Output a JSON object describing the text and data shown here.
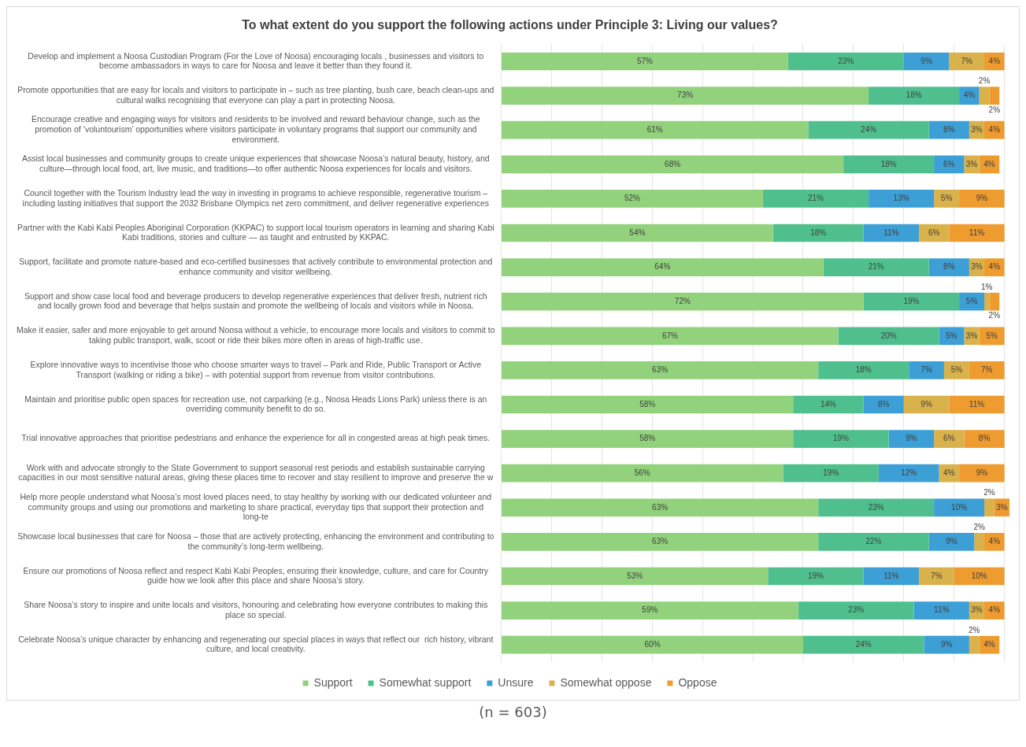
{
  "chart_data": {
    "type": "bar",
    "orientation": "horizontal",
    "stacked": true,
    "title": "To what extent do you support the following actions under Principle 3: Living our values?",
    "categories": [
      "Develop and implement a Noosa Custodian Program (For the Love of Noosa) encouraging locals , businesses and visitors to become ambassadors in ways to care for Noosa and leave it better than they found it.",
      "Promote opportunities that are easy for locals and visitors to participate in – such as tree planting, bush care, beach clean-ups and cultural walks recognising that everyone can play a part in protecting Noosa.",
      "Encourage creative and engaging ways for visitors and residents to be involved and reward behaviour change, such as the promotion of ‘voluntourism’ opportunities where visitors participate in voluntary programs that support our community and environment.",
      "Assist local businesses and community groups to create unique experiences that showcase Noosa’s natural beauty, history, and culture—through local food, art, live music, and traditions—to offer authentic Noosa experiences for locals and visitors.",
      "Council together with the Tourism Industry lead the way in investing in programs to achieve responsible, regenerative tourism – including lasting initiatives that support the 2032 Brisbane Olympics net zero commitment, and deliver regenerative experiences",
      "Partner with the Kabi Kabi Peoples Aboriginal Corporation (KKPAC) to support local tourism operators in learning and sharing Kabi Kabi traditions, stories and culture — as taught and entrusted by KKPAC.",
      "Support, facilitate and promote nature-based and eco-certified businesses that actively contribute to environmental protection and enhance community and visitor wellbeing.",
      "Support and show case local food and beverage producers to develop regenerative experiences that deliver fresh, nutrient rich and locally grown food and beverage that helps sustain and promote the wellbeing of locals and visitors while in Noosa.",
      "Make it easier, safer and more enjoyable to get around Noosa without a vehicle, to encourage more locals and visitors to commit to taking public transport, walk, scoot or ride their bikes more often in areas of high-traffic use.",
      "Explore innovative ways to incentivise those who choose smarter ways to travel – Park and Ride, Public Transport or Active Transport (walking or riding a bike) – with potential support from revenue from visitor contributions.",
      "Maintain and prioritise public open spaces for recreation use, not carparking (e.g., Noosa Heads Lions Park) unless there is an overriding community benefit to do so.",
      "Trial innovative approaches that prioritise pedestrians and enhance the experience for all in congested areas at high peak times.",
      "Work with and advocate strongly to the State Government to support seasonal rest periods and establish sustainable carrying capacities in our most sensitive natural areas, giving these places time to recover and stay resilient to improve and preserve the w",
      "Help more people understand what Noosa’s most loved places need, to stay healthy by working with our dedicated volunteer and community groups and using our promotions and marketing to share practical, everyday tips that support their protection and long-te",
      "Showcase local businesses that care for Noosa – those that are actively protecting, enhancing the environment and contributing to the community’s long-term wellbeing.",
      "Ensure our promotions of Noosa reflect and respect Kabi Kabi Peoples, ensuring their knowledge, culture, and care for Country guide how we look after this place and share Noosa’s story.",
      "Share Noosa’s story to inspire and unite locals and visitors, honouring and celebrating how everyone contributes to making this place so special.",
      "Celebrate Noosa’s unique character by enhancing and regenerating our special places in ways that reflect our  rich history, vibrant culture, and local creativity."
    ],
    "series": [
      {
        "name": "Support",
        "color": "#92d27c",
        "values": [
          57,
          73,
          61,
          68,
          52,
          54,
          64,
          72,
          67,
          63,
          58,
          58,
          56,
          63,
          63,
          53,
          59,
          60
        ],
        "value_labels": [
          "57%",
          "73%",
          "61%",
          "68%",
          "52%",
          "54%",
          "64%",
          "72%",
          "67%",
          "63%",
          "58%",
          "58%",
          "56%",
          "63%",
          "63%",
          "53%",
          "59%",
          "60%"
        ]
      },
      {
        "name": "Somewhat support",
        "color": "#4fc08d",
        "values": [
          23,
          18,
          24,
          18,
          21,
          18,
          21,
          19,
          20,
          18,
          14,
          19,
          19,
          23,
          22,
          19,
          23,
          24
        ],
        "value_labels": [
          "23%",
          "18%",
          "24%",
          "18%",
          "21%",
          "18%",
          "21%",
          "19%",
          "20%",
          "18%",
          "14%",
          "19%",
          "19%",
          "23%",
          "22%",
          "19%",
          "23%",
          "24%"
        ]
      },
      {
        "name": "Unsure",
        "color": "#3c9fd6",
        "values": [
          9,
          4,
          8,
          6,
          13,
          11,
          8,
          5,
          5,
          7,
          8,
          9,
          12,
          10,
          9,
          11,
          11,
          9
        ],
        "value_labels": [
          "9%",
          "4%",
          "8%",
          "6%",
          "13%",
          "11%",
          "8%",
          "5%",
          "5%",
          "7%",
          "8%",
          "9%",
          "12%",
          "10%",
          "9%",
          "11%",
          "11%",
          "9%"
        ]
      },
      {
        "name": "Somewhat oppose",
        "color": "#d9b24c",
        "values": [
          7,
          2,
          3,
          3,
          5,
          6,
          3,
          1,
          3,
          5,
          9,
          6,
          4,
          2,
          2,
          7,
          3,
          2
        ],
        "value_labels": [
          "7%",
          "2%",
          "3%",
          "3%",
          "5%",
          "6%",
          "3%",
          "1%",
          "3%",
          "5%",
          "9%",
          "6%",
          "4%",
          "2%",
          "2%",
          "7%",
          "3%",
          "2%"
        ]
      },
      {
        "name": "Oppose",
        "color": "#ee9b30",
        "values": [
          4,
          2,
          4,
          4,
          9,
          11,
          4,
          2,
          5,
          7,
          11,
          8,
          9,
          3,
          4,
          10,
          4,
          4
        ],
        "value_labels": [
          "4%",
          "2%",
          "4%",
          "4%",
          "9%",
          "11%",
          "4%",
          "2%",
          "5%",
          "7%",
          "11%",
          "8%",
          "9%",
          "3%",
          "4%",
          "10%",
          "4%",
          "4%"
        ]
      }
    ],
    "xlim": [
      0,
      101
    ],
    "xticks": [
      {
        "value": 0,
        "label": null
      },
      {
        "value": 10,
        "label": null
      },
      {
        "value": 20,
        "label": null
      },
      {
        "value": 30,
        "label": null
      },
      {
        "value": 40,
        "label": null
      },
      {
        "value": 50,
        "label": null
      },
      {
        "value": 60,
        "label": null
      },
      {
        "value": 70,
        "label": null
      },
      {
        "value": 80,
        "label": null
      },
      {
        "value": 90,
        "label": null
      },
      {
        "value": 100,
        "label": null
      }
    ],
    "grid": "x",
    "legend": "bottom",
    "tick_labels": "y",
    "annotations": [
      "(n = 603)"
    ]
  }
}
